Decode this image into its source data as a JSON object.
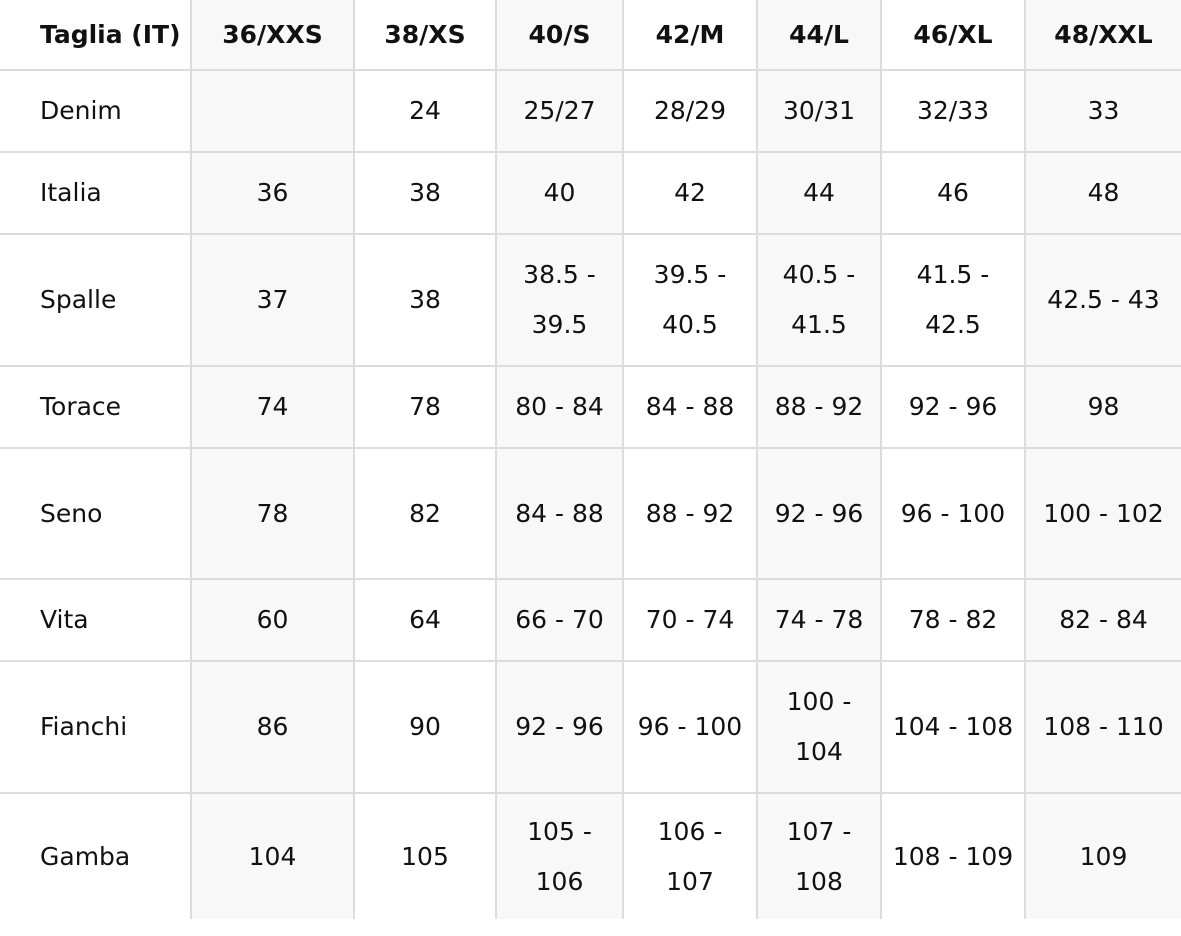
{
  "table": {
    "headers": [
      "Taglia (IT)",
      "36/XXS",
      "38/XS",
      "40/S",
      "42/M",
      "44/L",
      "46/XL",
      "48/XXL"
    ],
    "rows": [
      [
        "Denim",
        "",
        "24",
        "25/27",
        "28/29",
        "30/31",
        "32/33",
        "33"
      ],
      [
        "Italia",
        "36",
        "38",
        "40",
        "42",
        "44",
        "46",
        "48"
      ],
      [
        "Spalle",
        "37",
        "38",
        "38.5 - 39.5",
        "39.5 - 40.5",
        "40.5 - 41.5",
        "41.5 - 42.5",
        "42.5 - 43"
      ],
      [
        "Torace",
        "74",
        "78",
        "80 - 84",
        "84 - 88",
        "88 - 92",
        "92 - 96",
        "98"
      ],
      [
        "Seno",
        "78",
        "82",
        "84 - 88",
        "88 - 92",
        "92 - 96",
        "96 - 100",
        "100 - 102"
      ],
      [
        "Vita",
        "60",
        "64",
        "66 - 70",
        "70 - 74",
        "74 - 78",
        "78 - 82",
        "82 - 84"
      ],
      [
        "Fianchi",
        "86",
        "90",
        "92 - 96",
        "96 - 100",
        "100 - 104",
        "104 - 108",
        "108 - 110"
      ],
      [
        "Gamba",
        "104",
        "105",
        "105 - 106",
        "106 - 107",
        "107 - 108",
        "108 - 109",
        "109"
      ]
    ]
  }
}
